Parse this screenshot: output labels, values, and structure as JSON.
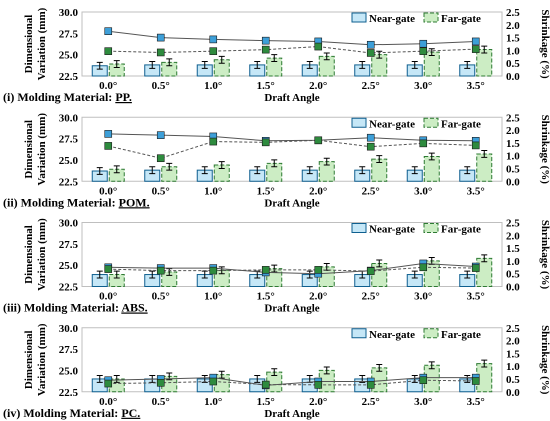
{
  "colors": {
    "near_fill": "#c5e7f7",
    "near_stroke": "#0e5f8f",
    "far_fill": "#ccedc4",
    "far_stroke": "#2d7a32",
    "near_marker": "#3d9fd8",
    "far_marker": "#2e8b3e",
    "line": "#555555"
  },
  "chart_data": [
    {
      "type": "bar",
      "caption_prefix": "(i) Molding Material: ",
      "material": "PP.",
      "xlabel": "Draft Angle",
      "ylabel": [
        "Dimensional",
        "Variation (mm)"
      ],
      "y2label": "Shrinkage (%)",
      "categories": [
        "0.0°",
        "0.5°",
        "1.0°",
        "1.5°",
        "2.0°",
        "2.5°",
        "3.0°",
        "3.5°"
      ],
      "ylim": [
        22.5,
        30.0
      ],
      "yticks": [
        "22.5",
        "25.0",
        "27.5",
        "30.0"
      ],
      "y2lim": [
        0.0,
        2.5
      ],
      "y2ticks": [
        "0.0",
        "0.5",
        "1.0",
        "1.5",
        "2.0",
        "2.5"
      ],
      "legend": [
        "Near-gate",
        "Far-gate"
      ],
      "legend_position": "top-right",
      "series": [
        {
          "name": "Near-gate",
          "kind": "bar",
          "values": [
            23.7,
            23.8,
            23.8,
            23.8,
            23.8,
            23.8,
            23.8,
            23.8
          ],
          "errors": [
            0.4,
            0.4,
            0.4,
            0.4,
            0.4,
            0.4,
            0.4,
            0.4
          ]
        },
        {
          "name": "Far-gate",
          "kind": "bar",
          "values": [
            23.9,
            24.1,
            24.4,
            24.6,
            24.8,
            25.0,
            25.3,
            25.6
          ],
          "errors": [
            0.4,
            0.4,
            0.4,
            0.4,
            0.4,
            0.4,
            0.4,
            0.4
          ]
        },
        {
          "name": "Near-gate shrinkage",
          "kind": "line",
          "axis": "y2",
          "values": [
            1.75,
            1.5,
            1.43,
            1.38,
            1.35,
            1.22,
            1.26,
            1.35
          ]
        },
        {
          "name": "Far-gate shrinkage",
          "kind": "line",
          "axis": "y2",
          "values": [
            0.97,
            0.92,
            0.97,
            1.03,
            1.15,
            0.9,
            0.97,
            1.05
          ]
        }
      ]
    },
    {
      "type": "bar",
      "caption_prefix": "(ii) Molding Material: ",
      "material": "POM.",
      "xlabel": "Draft Angle",
      "ylabel": [
        "Dimensional",
        "Variation (mm)"
      ],
      "y2label": "Shrinkage (%)",
      "categories": [
        "0.0°",
        "0.5°",
        "1.0°",
        "1.5°",
        "2.0°",
        "2.5°",
        "3.0°",
        "3.5°"
      ],
      "ylim": [
        22.5,
        30.0
      ],
      "yticks": [
        "22.5",
        "25.0",
        "27.5",
        "30.0"
      ],
      "y2lim": [
        0.0,
        2.5
      ],
      "y2ticks": [
        "0.0",
        "0.5",
        "1.0",
        "1.5",
        "2.0",
        "2.5"
      ],
      "legend": [
        "Near-gate",
        "Far-gate"
      ],
      "legend_position": "top-right",
      "series": [
        {
          "name": "Near-gate",
          "kind": "bar",
          "values": [
            23.7,
            23.8,
            23.8,
            23.8,
            23.8,
            23.8,
            23.8,
            23.8
          ],
          "errors": [
            0.4,
            0.4,
            0.4,
            0.4,
            0.4,
            0.4,
            0.4,
            0.4
          ]
        },
        {
          "name": "Far-gate",
          "kind": "bar",
          "values": [
            23.9,
            24.2,
            24.4,
            24.6,
            24.8,
            25.1,
            25.4,
            25.7
          ],
          "errors": [
            0.4,
            0.4,
            0.4,
            0.4,
            0.4,
            0.4,
            0.4,
            0.4
          ]
        },
        {
          "name": "Near-gate shrinkage",
          "kind": "line",
          "axis": "y2",
          "values": [
            1.85,
            1.8,
            1.75,
            1.58,
            1.6,
            1.7,
            1.6,
            1.58
          ]
        },
        {
          "name": "Far-gate shrinkage",
          "kind": "line",
          "axis": "y2",
          "values": [
            1.38,
            0.9,
            1.55,
            1.52,
            1.6,
            1.35,
            1.48,
            1.4
          ]
        }
      ]
    },
    {
      "type": "bar",
      "caption_prefix": "(iii) Molding Material: ",
      "material": "ABS.",
      "xlabel": "Draft Angle",
      "ylabel": [
        "Dimensional",
        "Variation (mm)"
      ],
      "y2label": "Shrinkage (%)",
      "categories": [
        "0.0°",
        "0.5°",
        "1.0°",
        "1.5°",
        "2.0°",
        "2.5°",
        "3.0°",
        "3.5°"
      ],
      "ylim": [
        22.5,
        30.0
      ],
      "yticks": [
        "22.5",
        "25.0",
        "27.5",
        "30.0"
      ],
      "y2lim": [
        0.0,
        2.5
      ],
      "y2ticks": [
        "0.0",
        "0.5",
        "1.0",
        "1.5",
        "2.0",
        "2.5"
      ],
      "legend": [
        "Near-gate",
        "Far-gate"
      ],
      "legend_position": "top-right",
      "series": [
        {
          "name": "Near-gate",
          "kind": "bar",
          "values": [
            23.9,
            23.9,
            23.9,
            23.9,
            23.9,
            23.9,
            23.9,
            23.9
          ],
          "errors": [
            0.4,
            0.4,
            0.4,
            0.4,
            0.4,
            0.4,
            0.4,
            0.4
          ]
        },
        {
          "name": "Far-gate",
          "kind": "bar",
          "values": [
            23.9,
            24.2,
            24.4,
            24.6,
            24.8,
            25.2,
            25.5,
            25.8
          ],
          "errors": [
            0.4,
            0.4,
            0.4,
            0.4,
            0.4,
            0.4,
            0.4,
            0.4
          ]
        },
        {
          "name": "Near-gate shrinkage",
          "kind": "line",
          "axis": "y2",
          "values": [
            0.75,
            0.72,
            0.72,
            0.55,
            0.5,
            0.62,
            0.9,
            0.78
          ]
        },
        {
          "name": "Far-gate shrinkage",
          "kind": "line",
          "axis": "y2",
          "values": [
            0.68,
            0.62,
            0.62,
            0.65,
            0.65,
            0.6,
            0.75,
            0.72
          ]
        }
      ]
    },
    {
      "type": "bar",
      "caption_prefix": "(iv) Molding Material: ",
      "material": "PC.",
      "xlabel": "Draft Angle",
      "ylabel": [
        "Dimensional",
        "Variation (mm)"
      ],
      "y2label": "Shrinkage (%)",
      "categories": [
        "0.0°",
        "0.5°",
        "1.0°",
        "1.5°",
        "2.0°",
        "2.5°",
        "3.0°",
        "3.5°"
      ],
      "ylim": [
        22.5,
        30.0
      ],
      "yticks": [
        "22.5",
        "25.0",
        "27.5",
        "30.0"
      ],
      "y2lim": [
        0.0,
        2.5
      ],
      "y2ticks": [
        "0.0",
        "0.5",
        "1.0",
        "1.5",
        "2.0",
        "2.5"
      ],
      "legend": [
        "Near-gate",
        "Far-gate"
      ],
      "legend_position": "top-right",
      "series": [
        {
          "name": "Near-gate",
          "kind": "bar",
          "values": [
            24.0,
            24.0,
            24.0,
            24.0,
            24.0,
            24.0,
            24.0,
            24.0
          ],
          "errors": [
            0.4,
            0.4,
            0.4,
            0.4,
            0.4,
            0.4,
            0.4,
            0.4
          ]
        },
        {
          "name": "Far-gate",
          "kind": "bar",
          "values": [
            24.0,
            24.3,
            24.5,
            24.8,
            25.0,
            25.3,
            25.6,
            25.8
          ],
          "errors": [
            0.4,
            0.4,
            0.4,
            0.4,
            0.4,
            0.4,
            0.4,
            0.4
          ]
        },
        {
          "name": "Near-gate shrinkage",
          "kind": "line",
          "axis": "y2",
          "values": [
            0.45,
            0.5,
            0.55,
            0.25,
            0.4,
            0.4,
            0.55,
            0.55
          ]
        },
        {
          "name": "Far-gate shrinkage",
          "kind": "line",
          "axis": "y2",
          "values": [
            0.32,
            0.35,
            0.4,
            0.28,
            0.27,
            0.27,
            0.45,
            0.42
          ]
        }
      ]
    }
  ]
}
